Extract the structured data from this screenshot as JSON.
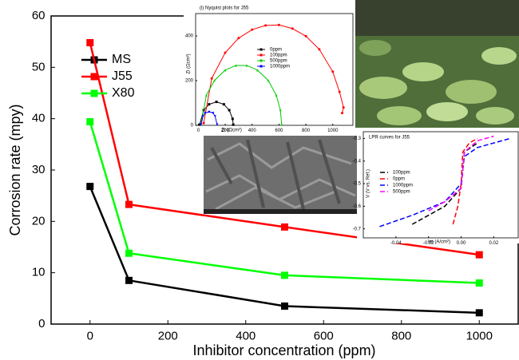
{
  "chart_data": [
    {
      "type": "line",
      "x_label": "Inhibitor concentration (ppm)",
      "y_label": "Corrosion rate (mpy)",
      "x": [
        0,
        100,
        500,
        1000
      ],
      "series": [
        {
          "name": "MS",
          "color": "#000000",
          "values": [
            26.8,
            8.5,
            3.5,
            2.2
          ]
        },
        {
          "name": "J55",
          "color": "#ff0000",
          "values": [
            54.8,
            23.3,
            18.9,
            13.5
          ]
        },
        {
          "name": "X80",
          "color": "#00ff00",
          "values": [
            39.4,
            13.8,
            9.5,
            8.0
          ]
        }
      ],
      "marker": "square",
      "linestyle": "solid",
      "xlim": [
        -100,
        1100
      ],
      "xticks": [
        0,
        200,
        400,
        600,
        800,
        1000
      ],
      "ylim": [
        0,
        60
      ],
      "yticks": [
        0,
        10,
        20,
        30,
        40,
        50,
        60
      ]
    },
    {
      "type": "line",
      "title": "(i) Nyquist plots for J55",
      "x_label": "Zr (Ωcm²)",
      "y_label": "Zi (Ωcm²)",
      "series": [
        {
          "name": "0ppm",
          "color": "#000000",
          "marker": "square",
          "x": [
            10,
            40,
            80,
            135,
            190,
            230,
            255,
            260
          ],
          "values": [
            3,
            68,
            94,
            105,
            94,
            68,
            29,
            3
          ]
        },
        {
          "name": "100ppm",
          "color": "#ff0000",
          "marker": "circle",
          "x": [
            40,
            100,
            200,
            300,
            400,
            500,
            600,
            700,
            800,
            900,
            1000,
            1050,
            1080,
            1070
          ],
          "values": [
            10,
            210,
            325,
            390,
            428,
            447,
            449,
            433,
            399,
            340,
            240,
            150,
            80,
            55
          ]
        },
        {
          "name": "500ppm",
          "color": "#00cc00",
          "marker": "triangle",
          "x": [
            20,
            60,
            120,
            200,
            280,
            360,
            440,
            520,
            580,
            610,
            620
          ],
          "values": [
            5,
            135,
            201,
            247,
            268,
            268,
            247,
            201,
            135,
            69,
            5
          ]
        },
        {
          "name": "1000ppm",
          "color": "#0000ff",
          "marker": "triangle-down",
          "x": [
            20,
            35,
            50,
            80,
            110,
            125,
            140
          ],
          "values": [
            3,
            40,
            55,
            60,
            55,
            40,
            3
          ]
        }
      ],
      "linestyle": "solid",
      "xlim": [
        -20,
        1150
      ],
      "xticks": [
        0,
        200,
        400,
        600,
        800,
        1000
      ],
      "ylim": [
        0,
        500
      ],
      "yticks": [
        0,
        200,
        400
      ]
    },
    {
      "type": "line",
      "title": "LPR curves for J55",
      "x_label": "Im (A/cm²)",
      "y_label": "V (V vs. Ref.)",
      "series": [
        {
          "name": "100ppm",
          "color": "#000000",
          "x": [
            -0.03,
            -0.02,
            -0.01,
            0,
            0.002,
            0.01
          ],
          "values": [
            -0.68,
            -0.64,
            -0.6,
            -0.52,
            -0.36,
            -0.32
          ]
        },
        {
          "name": "0ppm",
          "color": "#ff0000",
          "x": [
            -0.005,
            -0.002,
            0,
            0.001,
            0.005,
            0.01
          ],
          "values": [
            -0.68,
            -0.6,
            -0.5,
            -0.36,
            -0.32,
            -0.3
          ]
        },
        {
          "name": "1000ppm",
          "color": "#0000ff",
          "x": [
            -0.05,
            -0.03,
            -0.01,
            0,
            0.002,
            0.01,
            0.03
          ],
          "values": [
            -0.69,
            -0.64,
            -0.58,
            -0.5,
            -0.38,
            -0.34,
            -0.3
          ]
        },
        {
          "name": "500ppm",
          "color": "#ff00ff",
          "x": [
            -0.02,
            -0.01,
            0,
            0.002,
            0.01,
            0.02
          ],
          "values": [
            -0.62,
            -0.58,
            -0.52,
            -0.36,
            -0.31,
            -0.29
          ]
        }
      ],
      "marker": "none",
      "linestyle": "dashed",
      "xlim": [
        -0.06,
        0.035
      ],
      "xticks": [
        -0.04,
        -0.02,
        {
          "value": 0,
          "label": "0.00"
        },
        0.02
      ],
      "ylim": [
        -0.74,
        -0.27
      ],
      "yticks": [
        -0.3,
        -0.4,
        -0.5,
        -0.6,
        -0.7
      ]
    }
  ]
}
